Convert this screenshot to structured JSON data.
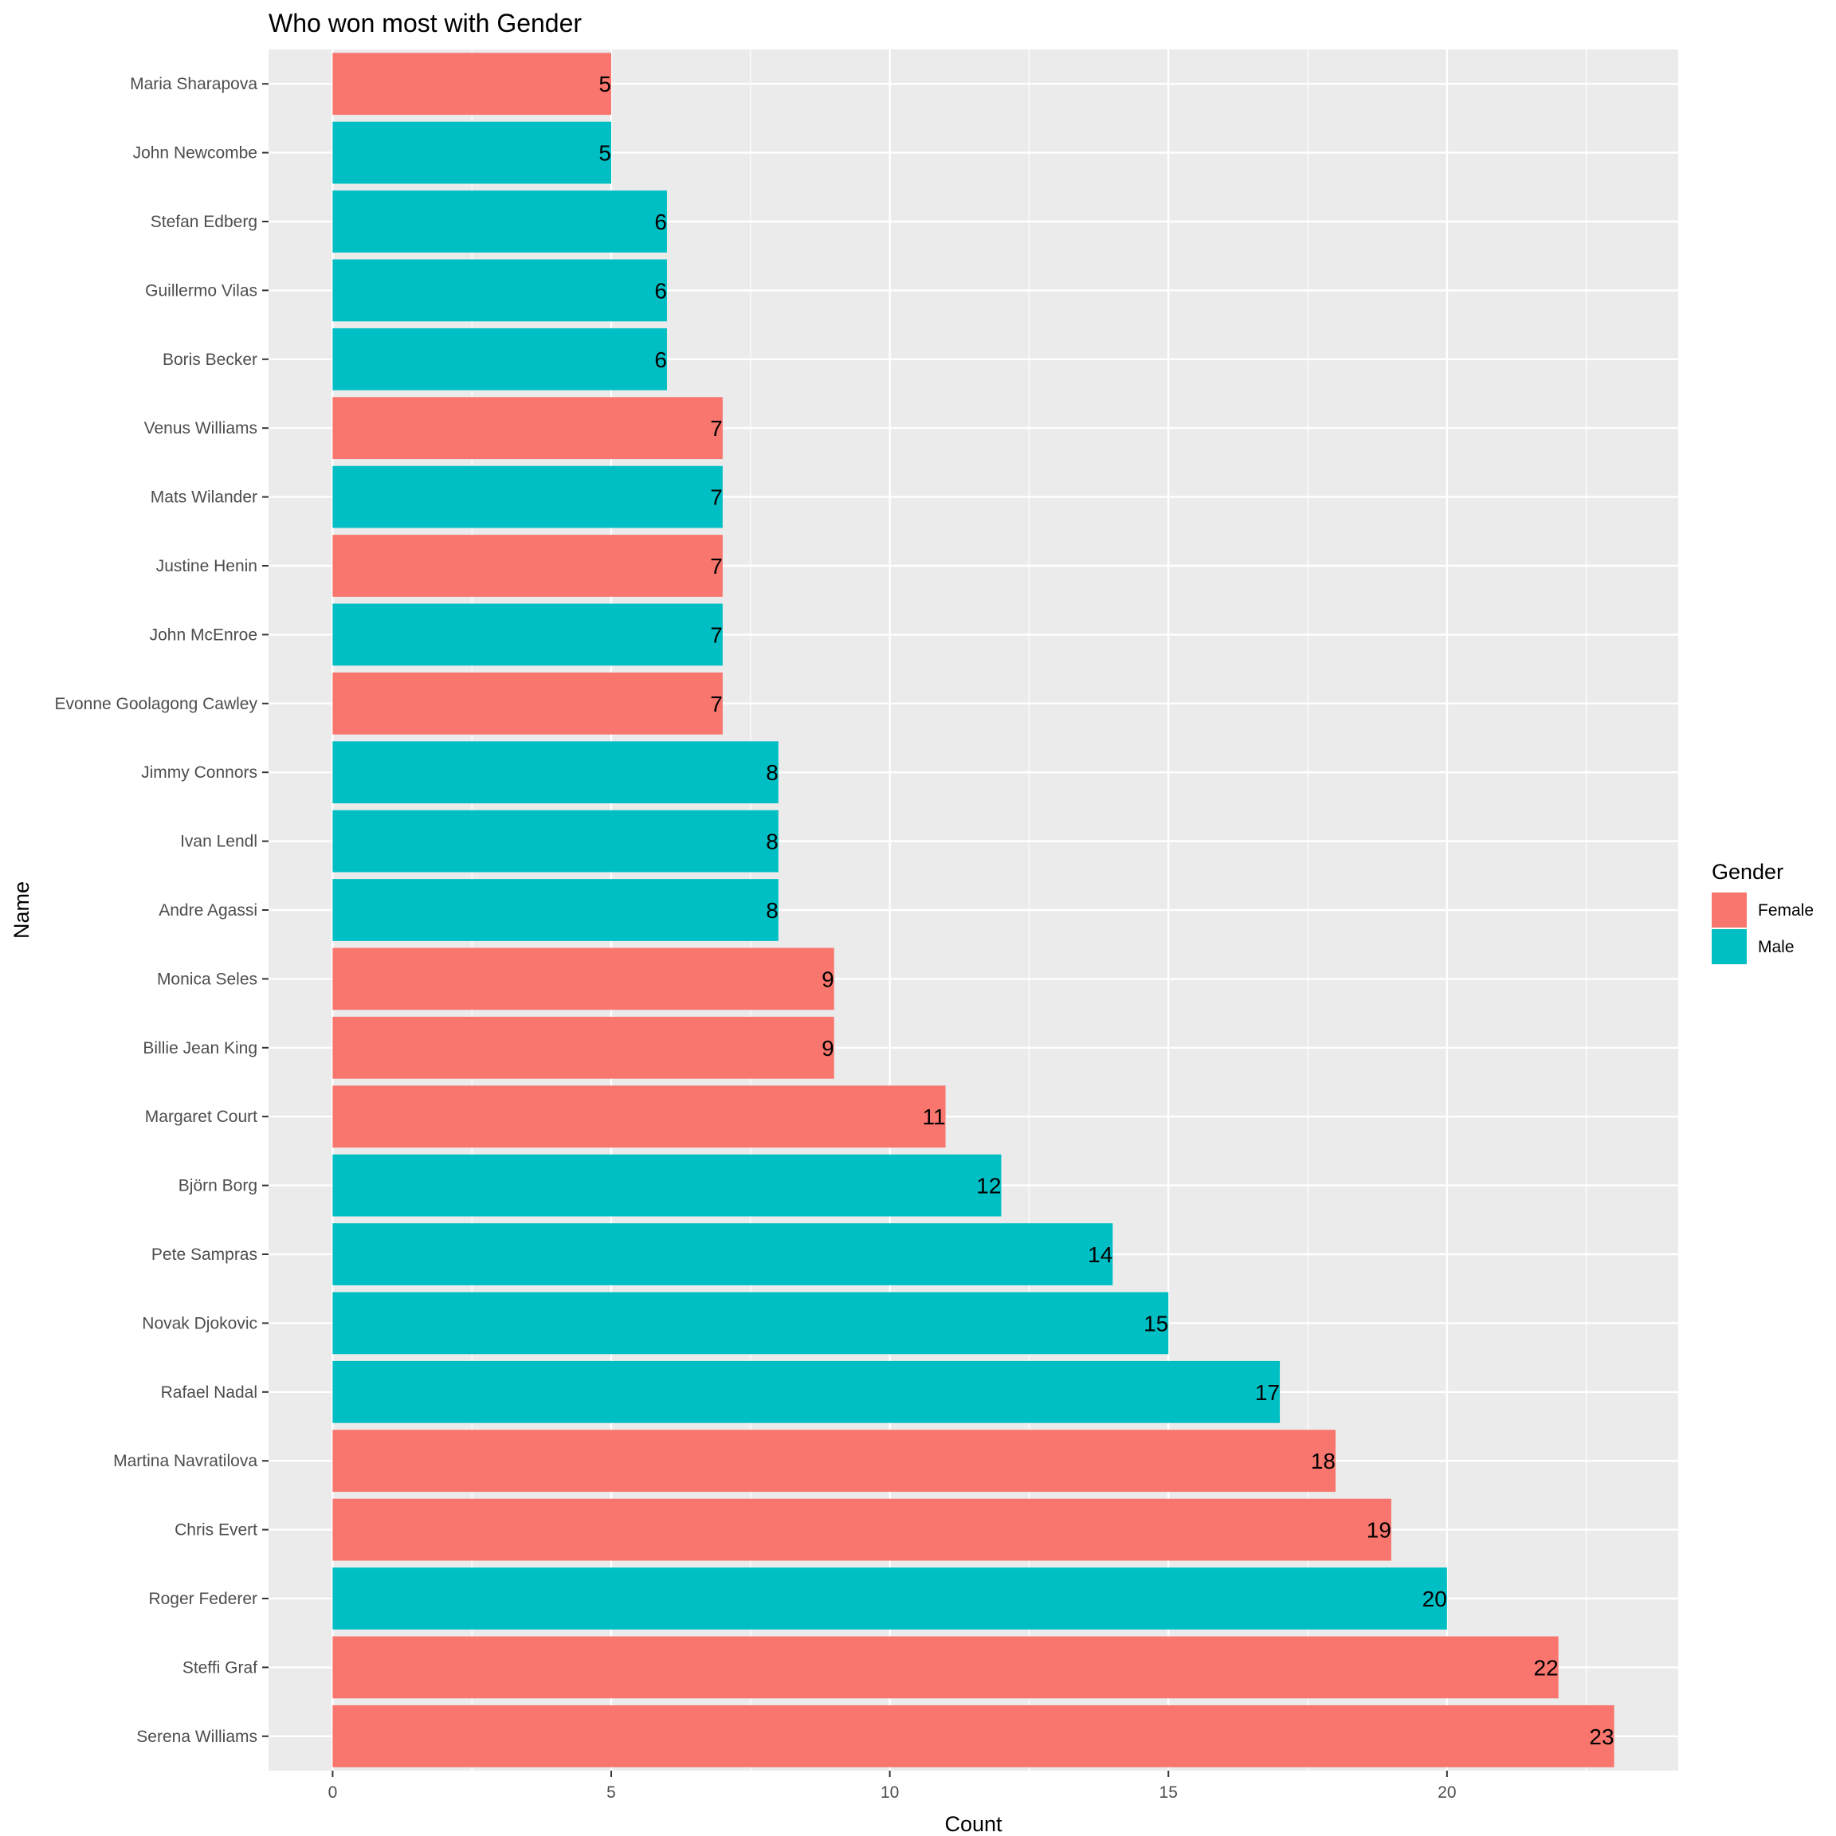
{
  "chart_data": {
    "type": "bar",
    "orientation": "horizontal",
    "title": "Who won most with Gender",
    "xlabel": "Count",
    "ylabel": "Name",
    "xlim": [
      -1.15,
      24.15
    ],
    "x_ticks": [
      0,
      5,
      10,
      15,
      20
    ],
    "grid": true,
    "legend": {
      "title": "Gender",
      "position": "right",
      "entries": [
        {
          "label": "Female",
          "color": "#F8766D"
        },
        {
          "label": "Male",
          "color": "#00BFC4"
        }
      ]
    },
    "colors": {
      "Female": "#F8766D",
      "Male": "#00BFC4",
      "panel": "#EBEBEB",
      "grid": "#FFFFFF"
    },
    "bars": [
      {
        "name": "Maria Sharapova",
        "value": 5,
        "gender": "Female"
      },
      {
        "name": "John Newcombe",
        "value": 5,
        "gender": "Male"
      },
      {
        "name": "Stefan Edberg",
        "value": 6,
        "gender": "Male"
      },
      {
        "name": "Guillermo Vilas",
        "value": 6,
        "gender": "Male"
      },
      {
        "name": "Boris Becker",
        "value": 6,
        "gender": "Male"
      },
      {
        "name": "Venus Williams",
        "value": 7,
        "gender": "Female"
      },
      {
        "name": "Mats Wilander",
        "value": 7,
        "gender": "Male"
      },
      {
        "name": "Justine Henin",
        "value": 7,
        "gender": "Female"
      },
      {
        "name": "John McEnroe",
        "value": 7,
        "gender": "Male"
      },
      {
        "name": "Evonne Goolagong Cawley",
        "value": 7,
        "gender": "Female"
      },
      {
        "name": "Jimmy Connors",
        "value": 8,
        "gender": "Male"
      },
      {
        "name": "Ivan Lendl",
        "value": 8,
        "gender": "Male"
      },
      {
        "name": "Andre Agassi",
        "value": 8,
        "gender": "Male"
      },
      {
        "name": "Monica Seles",
        "value": 9,
        "gender": "Female"
      },
      {
        "name": "Billie Jean King",
        "value": 9,
        "gender": "Female"
      },
      {
        "name": "Margaret Court",
        "value": 11,
        "gender": "Female"
      },
      {
        "name": "Björn Borg",
        "value": 12,
        "gender": "Male"
      },
      {
        "name": "Pete Sampras",
        "value": 14,
        "gender": "Male"
      },
      {
        "name": "Novak Djokovic",
        "value": 15,
        "gender": "Male"
      },
      {
        "name": "Rafael Nadal",
        "value": 17,
        "gender": "Male"
      },
      {
        "name": "Martina Navratilova",
        "value": 18,
        "gender": "Female"
      },
      {
        "name": "Chris Evert",
        "value": 19,
        "gender": "Female"
      },
      {
        "name": "Roger Federer",
        "value": 20,
        "gender": "Male"
      },
      {
        "name": "Steffi Graf",
        "value": 22,
        "gender": "Female"
      },
      {
        "name": "Serena Williams",
        "value": 23,
        "gender": "Female"
      }
    ]
  }
}
